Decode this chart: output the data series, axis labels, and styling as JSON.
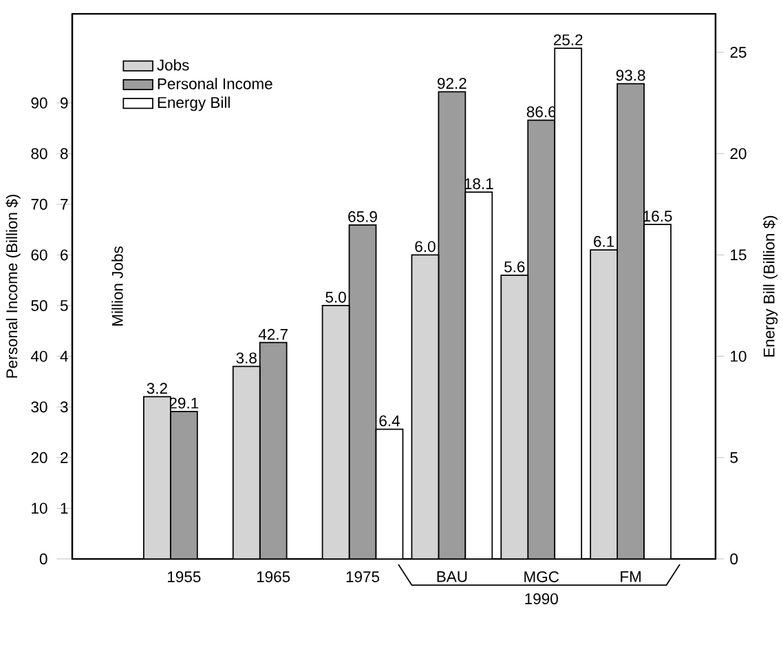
{
  "chart_data": {
    "type": "bar",
    "categories": [
      "1955",
      "1965",
      "1975",
      "BAU",
      "MGC",
      "FM"
    ],
    "series": [
      {
        "name": "Jobs",
        "color": "#d4d4d4",
        "axis": "y3",
        "values": [
          3.2,
          3.8,
          5.0,
          6.0,
          5.6,
          6.1
        ],
        "value_labels": [
          "3.2",
          "3.8",
          "5.0",
          "6.0",
          "5.6",
          "6.1"
        ]
      },
      {
        "name": "Personal Income",
        "color": "#9c9c9c",
        "values": [
          29.1,
          42.7,
          65.9,
          92.2,
          86.6,
          93.8
        ],
        "value_labels": [
          "29.1",
          "42.7",
          "65.9",
          "92.2",
          "86.6",
          "93.8"
        ]
      },
      {
        "name": "Energy Bill",
        "color": "#ffffff",
        "axis": "y2",
        "values": [
          null,
          null,
          6.4,
          18.1,
          25.2,
          16.5
        ],
        "value_labels": [
          null,
          null,
          "6.4",
          "18.1",
          "25.2",
          "16.5"
        ]
      }
    ],
    "ylabel": "Personal Income (Billion $)",
    "ylim": [
      0,
      107.6
    ],
    "yticks": [
      0,
      10,
      20,
      30,
      40,
      50,
      60,
      70,
      80,
      90
    ],
    "y3label": "Million Jobs",
    "y3lim": [
      0,
      10.76
    ],
    "y3ticks": [
      1,
      2,
      3,
      4,
      5,
      6,
      7,
      8,
      9
    ],
    "y2label": "Energy Bill (Billion $)",
    "y2lim": [
      0,
      26.9
    ],
    "y2ticks": [
      0,
      5,
      10,
      15,
      20,
      25
    ],
    "annotations": [
      "1990"
    ],
    "legend": "top left",
    "grid": false
  }
}
